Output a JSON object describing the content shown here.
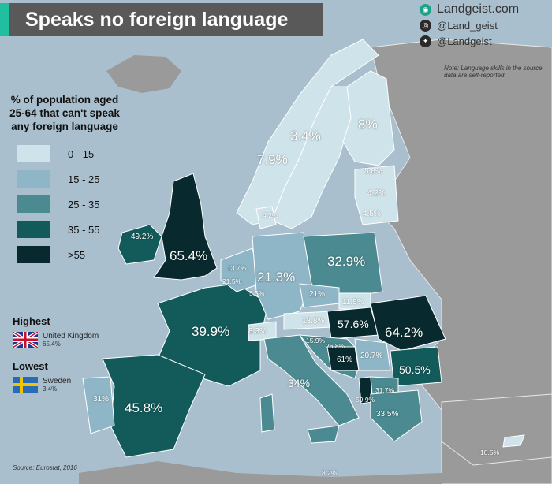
{
  "title": "Speaks no foreign language",
  "brand": {
    "site": "Landgeist.com",
    "instagram": "@Land_geist",
    "twitter": "@Landgeist"
  },
  "note": "Note: Language skills in the source data are self-reported.",
  "legend": {
    "heading": "% of population aged 25-64 that can't speak any foreign language",
    "items": [
      {
        "label": "0 - 15",
        "color": "#cfe3ea"
      },
      {
        "label": "15 - 25",
        "color": "#8fb6c6"
      },
      {
        "label": "25 - 35",
        "color": "#4a8a90"
      },
      {
        "label": "35 - 55",
        "color": "#135a5a"
      },
      {
        "label": ">55",
        "color": "#082a2e"
      }
    ]
  },
  "highest": {
    "heading": "Highest",
    "name": "United Kingdom",
    "value": "65.4%"
  },
  "lowest": {
    "heading": "Lowest",
    "name": "Sweden",
    "value": "3.4%"
  },
  "source": "Source: Eurostat, 2016",
  "map_labels": [
    {
      "id": "norway",
      "text": "7.9%"
    },
    {
      "id": "sweden",
      "text": "3.4%"
    },
    {
      "id": "finland",
      "text": "8%"
    },
    {
      "id": "estonia",
      "text": "8.8%"
    },
    {
      "id": "latvia",
      "text": "4.2%"
    },
    {
      "id": "lithuania",
      "text": "4.5%"
    },
    {
      "id": "denmark",
      "text": "4.2%"
    },
    {
      "id": "ireland",
      "text": "49.2%"
    },
    {
      "id": "uk",
      "text": "65.4%"
    },
    {
      "id": "netherlands",
      "text": "13.7%"
    },
    {
      "id": "belgium",
      "text": "21.5%"
    },
    {
      "id": "luxembourg",
      "text": "5.5%"
    },
    {
      "id": "germany",
      "text": "21.3%"
    },
    {
      "id": "poland",
      "text": "32.9%"
    },
    {
      "id": "czechia",
      "text": "21%"
    },
    {
      "id": "slovakia",
      "text": "11.8%"
    },
    {
      "id": "austria",
      "text": "13.8%"
    },
    {
      "id": "hungary",
      "text": "57.6%"
    },
    {
      "id": "romania",
      "text": "64.2%"
    },
    {
      "id": "france",
      "text": "39.9%"
    },
    {
      "id": "switzerland",
      "text": "8.3%"
    },
    {
      "id": "slovenia",
      "text": "15.9%"
    },
    {
      "id": "croatia",
      "text": "26.8%"
    },
    {
      "id": "bosnia",
      "text": "61%"
    },
    {
      "id": "serbia",
      "text": "20.7%"
    },
    {
      "id": "bulgaria",
      "text": "50.5%"
    },
    {
      "id": "italy",
      "text": "34%"
    },
    {
      "id": "portugal",
      "text": "31%"
    },
    {
      "id": "spain",
      "text": "45.8%"
    },
    {
      "id": "albania",
      "text": "59.9%"
    },
    {
      "id": "macedonia",
      "text": "31.7%"
    },
    {
      "id": "greece",
      "text": "33.5%"
    },
    {
      "id": "cyprus",
      "text": "10.5%"
    },
    {
      "id": "malta",
      "text": "8.2%"
    }
  ]
}
